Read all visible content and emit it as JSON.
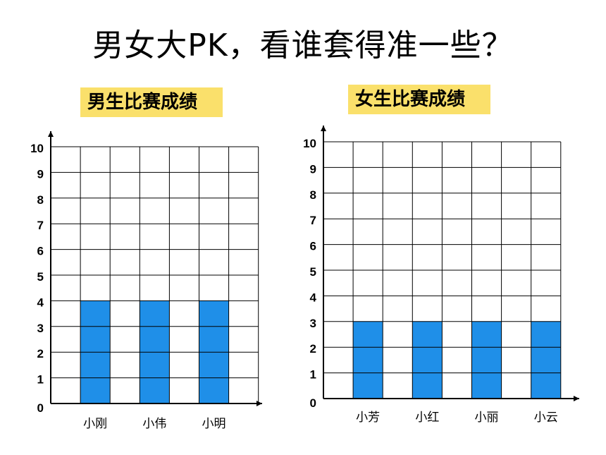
{
  "title": "男女大PK，看谁套得准一些？",
  "colors": {
    "bar": "#1f8fe8",
    "label_bg": "#fae06b"
  },
  "chart_data": [
    {
      "type": "bar",
      "title": "男生比赛成绩",
      "categories": [
        "小刚",
        "小伟",
        "小明"
      ],
      "values": [
        4,
        4,
        4
      ],
      "ylim": [
        0,
        10
      ],
      "yticks": [
        0,
        1,
        2,
        3,
        4,
        5,
        6,
        7,
        8,
        9,
        10
      ],
      "grid": true
    },
    {
      "type": "bar",
      "title": "女生比赛成绩",
      "categories": [
        "小芳",
        "小红",
        "小丽",
        "小云"
      ],
      "values": [
        3,
        3,
        3,
        3
      ],
      "ylim": [
        0,
        10
      ],
      "yticks": [
        0,
        1,
        2,
        3,
        4,
        5,
        6,
        7,
        8,
        9,
        10
      ],
      "grid": true
    }
  ]
}
